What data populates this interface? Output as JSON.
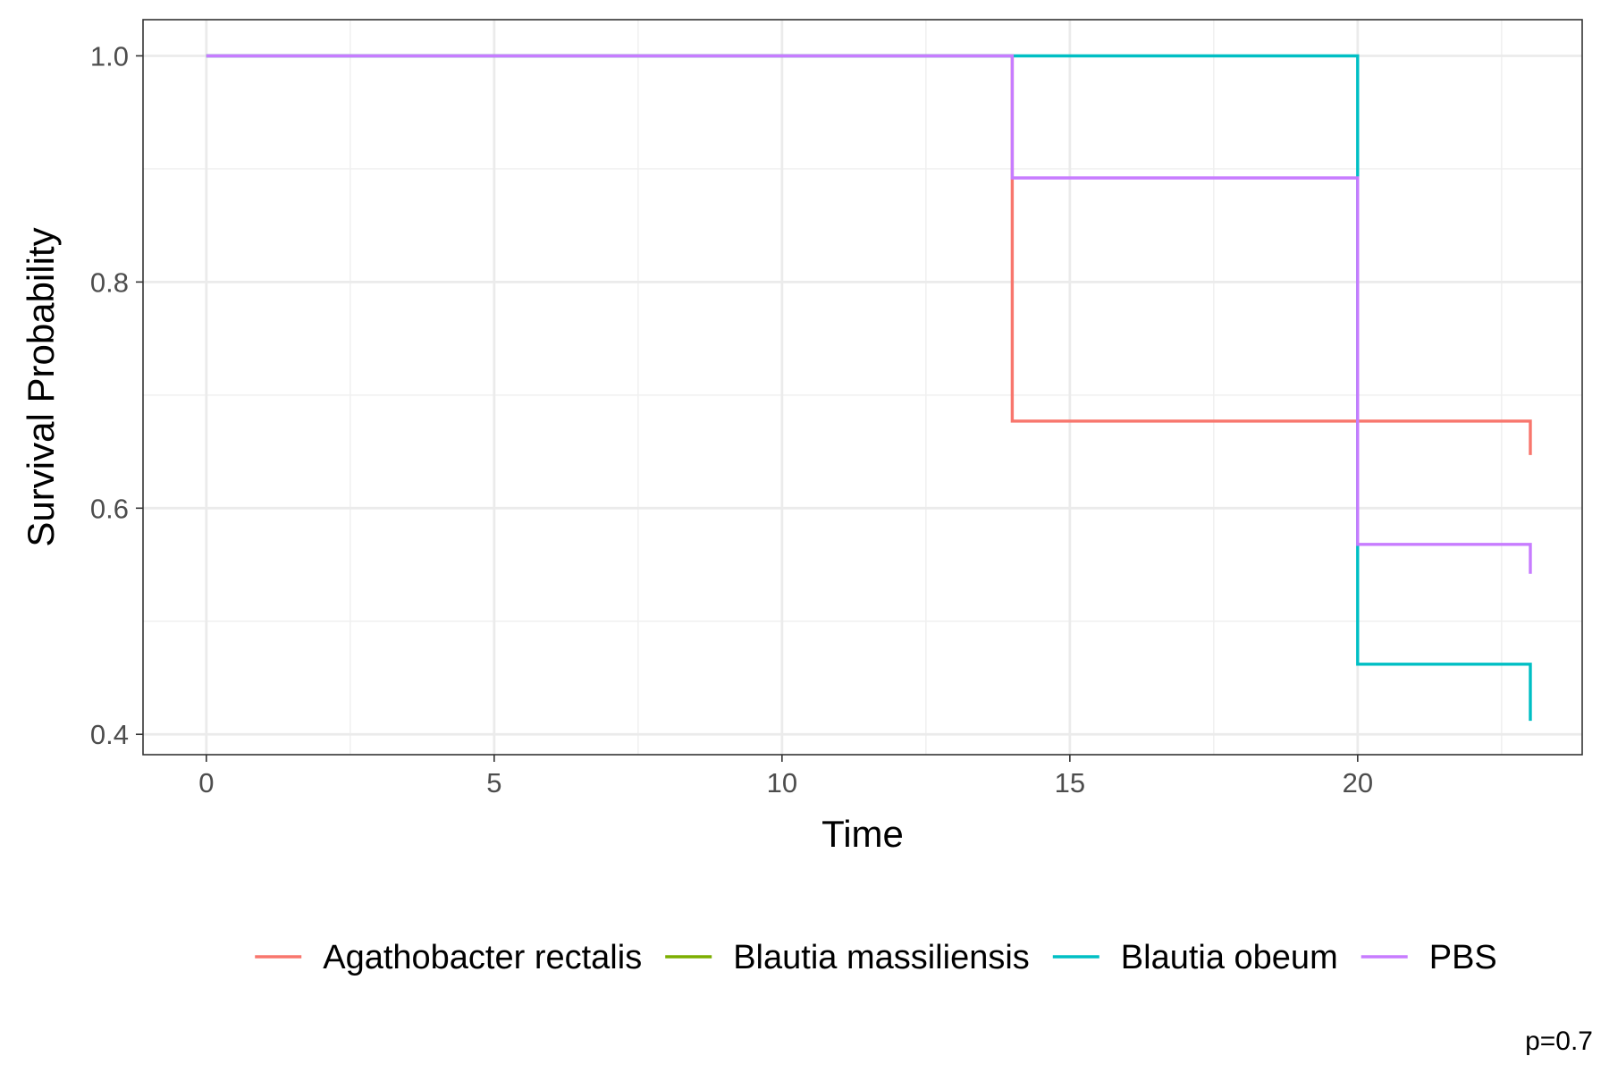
{
  "chart_data": {
    "type": "line",
    "subtype": "kaplan-meier step",
    "title": "",
    "xlabel": "Time",
    "ylabel": "Survival Probability",
    "xlim": [
      -1.1,
      23.9
    ],
    "ylim": [
      0.382,
      1.032
    ],
    "x_ticks": [
      0,
      5,
      10,
      15,
      20
    ],
    "x_tick_labels": [
      "0",
      "5",
      "10",
      "15",
      "20"
    ],
    "y_ticks": [
      0.4,
      0.6,
      0.8,
      1.0
    ],
    "y_tick_labels": [
      "0.4",
      "0.6",
      "0.8",
      "1.0"
    ],
    "x_minor_ticks": [
      2.5,
      7.5,
      12.5,
      17.5,
      22.5
    ],
    "y_minor_ticks": [
      0.5,
      0.7,
      0.9
    ],
    "grid": true,
    "legend_position": "bottom",
    "annotation": "p=0.7",
    "series": [
      {
        "name": "Agathobacter rectalis",
        "color": "#F8766D",
        "x": [
          0,
          14,
          14,
          23,
          23
        ],
        "y": [
          1.0,
          1.0,
          0.677,
          0.677,
          0.647
        ]
      },
      {
        "name": "Blautia massiliensis",
        "color": "#7CAE00",
        "x": [],
        "y": []
      },
      {
        "name": "Blautia obeum",
        "color": "#00BFC4",
        "x": [
          0,
          20,
          20,
          23,
          23
        ],
        "y": [
          1.0,
          1.0,
          0.462,
          0.462,
          0.412
        ]
      },
      {
        "name": "PBS",
        "color": "#C77CFF",
        "x": [
          0,
          14,
          14,
          20,
          20,
          23,
          23
        ],
        "y": [
          1.0,
          1.0,
          0.892,
          0.892,
          0.568,
          0.568,
          0.542
        ]
      }
    ]
  }
}
